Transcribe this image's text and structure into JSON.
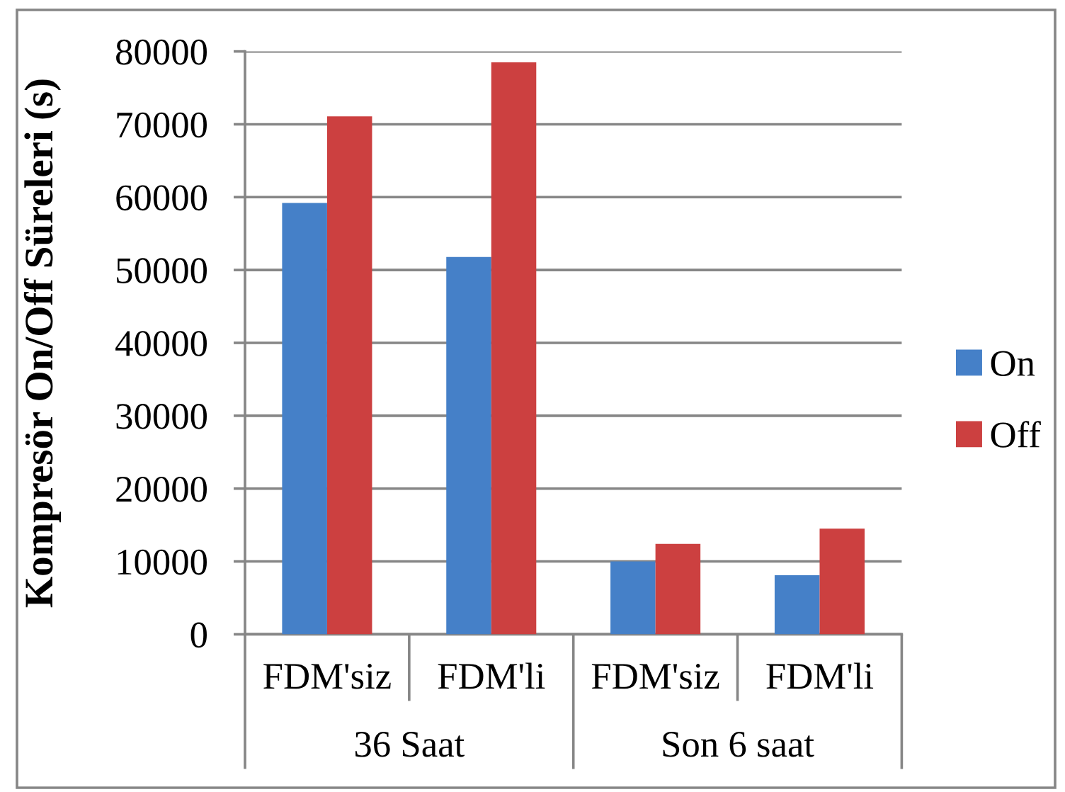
{
  "chart_data": {
    "type": "bar",
    "ylabel": "Kompresör On/Off Süreleri (s)",
    "categories": [
      "FDM'siz",
      "FDM'li",
      "FDM'siz",
      "FDM'li"
    ],
    "series": [
      {
        "name": "On",
        "color": "#4580c8",
        "values": [
          59200,
          51800,
          10000,
          8100
        ]
      },
      {
        "name": "Off",
        "color": "#cc4040",
        "values": [
          71100,
          78500,
          12400,
          14500
        ]
      }
    ],
    "ylim": [
      0,
      80000
    ],
    "yticks": [
      0,
      10000,
      20000,
      30000,
      40000,
      50000,
      60000,
      70000,
      80000
    ],
    "grid": "y",
    "legend": "right",
    "annotations": [
      "36 Saat",
      "Son 6 saat"
    ]
  }
}
